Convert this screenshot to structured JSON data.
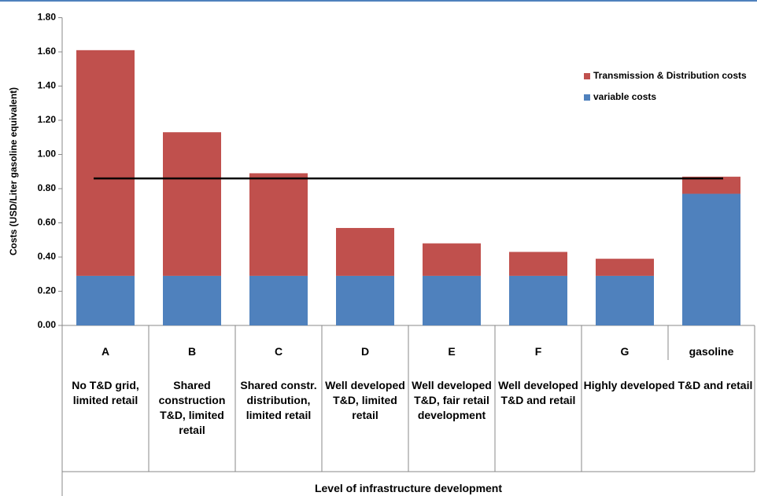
{
  "chart_data": {
    "type": "stacked_bar",
    "y_label": "Costs (USD/Liter gasoline equivalent)",
    "x_label": "Level of infrastructure development",
    "categories": [
      "A",
      "B",
      "C",
      "D",
      "E",
      "F",
      "G",
      "gasoline"
    ],
    "descriptions": [
      "No T&D grid, limited retail",
      "Shared construction T&D, limited retail",
      "Shared constr. distribution, limited retail",
      "Well developed T&D, limited retail",
      "Well developed T&D, fair retail development",
      "Well developed T&D and retail",
      "Highly developed T&D and retail",
      null
    ],
    "series": [
      {
        "name": "variable costs",
        "color": "#4f81bd",
        "values": [
          0.29,
          0.29,
          0.29,
          0.29,
          0.29,
          0.29,
          0.29,
          0.77
        ]
      },
      {
        "name": "Transmission & Distribution costs",
        "color": "#c0504d",
        "values": [
          1.32,
          0.84,
          0.6,
          0.28,
          0.19,
          0.14,
          0.1,
          0.1
        ]
      }
    ],
    "reference_line": 0.86,
    "ylim": [
      0,
      1.8
    ],
    "yticks": [
      {
        "value": 0,
        "label": "0.00"
      },
      {
        "value": 0.2,
        "label": "0.20"
      },
      {
        "value": 0.4,
        "label": "0.40"
      },
      {
        "value": 0.6,
        "label": "0.60"
      },
      {
        "value": 0.8,
        "label": "0.80"
      },
      {
        "value": 1.0,
        "label": "1.00"
      },
      {
        "value": 1.2,
        "label": "1.20"
      },
      {
        "value": 1.4,
        "label": "1.40"
      },
      {
        "value": 1.6,
        "label": "1.60"
      },
      {
        "value": 1.8,
        "label": "1.80"
      }
    ]
  }
}
